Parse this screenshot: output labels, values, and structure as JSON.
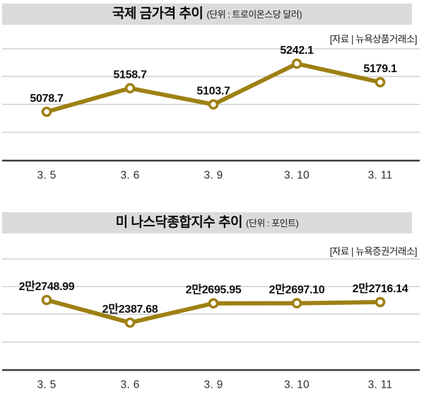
{
  "chart_data": [
    {
      "type": "line",
      "title": "국제 금가격 추이",
      "unit_label": "(단위 : 트로이온스당 달러)",
      "source": "[자료 | 뉴욕상품거래소]",
      "categories": [
        "3. 5",
        "3. 6",
        "3. 9",
        "3. 10",
        "3. 11"
      ],
      "values": [
        5078.7,
        5158.7,
        5103.7,
        5242.1,
        5179.1
      ],
      "point_labels": [
        "5078.7",
        "5158.7",
        "5103.7",
        "5242.1",
        "5179.1"
      ],
      "ylim": [
        5040,
        5280
      ],
      "grid": true,
      "legend": false
    },
    {
      "type": "line",
      "title": "미 나스닥종합지수 추이",
      "unit_label": "(단위 : 포인트)",
      "source": "[자료 | 뉴욕증권거래소]",
      "categories": [
        "3. 5",
        "3. 6",
        "3. 9",
        "3. 10",
        "3. 11"
      ],
      "values": [
        22748.99,
        22387.68,
        22695.95,
        22697.1,
        22716.14
      ],
      "point_labels": [
        "2만2748.99",
        "2만2387.68",
        "2만2695.95",
        "2만2697.10",
        "2만2716.14"
      ],
      "ylim": [
        22250,
        22900
      ],
      "grid": true,
      "legend": false
    }
  ],
  "colors": {
    "line": "#9E8014",
    "marker_fill": "#FFFFFF",
    "title_bar_bg": "#DBDBDB",
    "grid": "#C6C6C6",
    "axis": "#3B3B3B",
    "label_text": "#0E0E0E",
    "tick_text": "#2E2E2E"
  }
}
